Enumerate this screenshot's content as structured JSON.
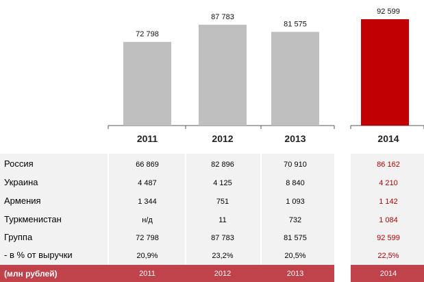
{
  "chart_data": {
    "type": "bar",
    "categories": [
      "2011",
      "2012",
      "2013",
      "2014"
    ],
    "values": [
      72798,
      87783,
      81575,
      92599
    ],
    "value_labels": [
      "72 798",
      "87 783",
      "81 575",
      "92 599"
    ],
    "ylim": [
      0,
      100000
    ],
    "highlight_category": "2014",
    "colors": {
      "bar": "#bfbfbf",
      "highlight": "#c00000",
      "table_bg": "#f2f2f2",
      "footer_bg": "#c0424a",
      "highlight_text": "#b00000"
    },
    "grid": false,
    "legend": "none"
  },
  "table": {
    "rows": [
      {
        "label": "Россия",
        "values": [
          "66 869",
          "82 896",
          "70 910",
          "86 162"
        ]
      },
      {
        "label": "Украина",
        "values": [
          "4 487",
          "4 125",
          "8 840",
          "4 210"
        ]
      },
      {
        "label": "Армения",
        "values": [
          "1 344",
          "751",
          "1 093",
          "1 142"
        ]
      },
      {
        "label": "Туркменистан",
        "values": [
          "н/д",
          "11",
          "732",
          "1 084"
        ]
      },
      {
        "label": "Группа",
        "values": [
          "72 798",
          "87 783",
          "81 575",
          "92 599"
        ]
      },
      {
        "label": "- в % от выручки",
        "values": [
          "20,9%",
          "23,2%",
          "20,5%",
          "22,5%"
        ]
      }
    ],
    "footer": {
      "label": "(млн рублей)",
      "values": [
        "2011",
        "2012",
        "2013",
        "2014"
      ]
    }
  }
}
